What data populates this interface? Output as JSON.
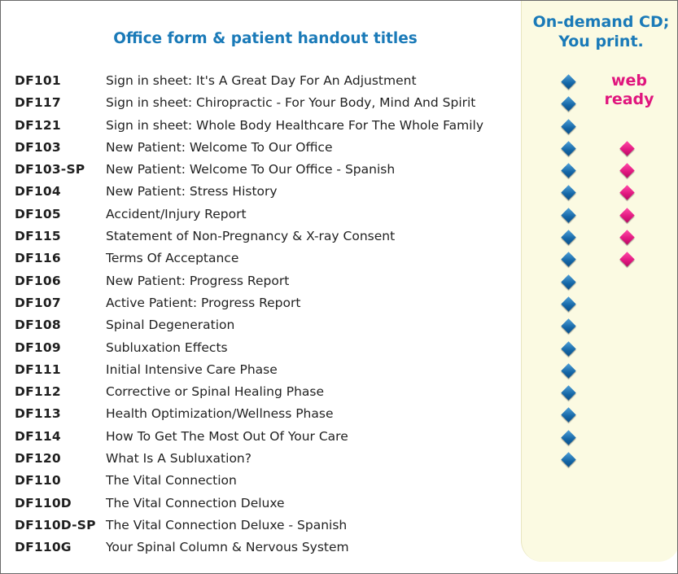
{
  "heading": "Office form & patient handout titles",
  "cd_column": {
    "line1": "On-demand CD;",
    "line2": "You print."
  },
  "web_column": {
    "line1": "web",
    "line2": "ready"
  },
  "colors": {
    "heading": "#1a7ab8",
    "cd_marker": "#1466a6",
    "web_marker": "#e0167e",
    "panel": "#fbfae2"
  },
  "icons": {
    "cd_marker": "blue-diamond-icon",
    "web_marker": "pink-diamond-icon"
  },
  "rows": [
    {
      "code": "DF101",
      "title": "Sign in sheet: It's A Great Day For An Adjustment",
      "cd": true,
      "web": false
    },
    {
      "code": "DF117",
      "title": "Sign in sheet: Chiropractic - For Your Body, Mind And Spirit",
      "cd": true,
      "web": false
    },
    {
      "code": "DF121",
      "title": "Sign in sheet: Whole Body Healthcare For The Whole Family",
      "cd": true,
      "web": false
    },
    {
      "code": "DF103",
      "title": "New Patient: Welcome To Our Office",
      "cd": true,
      "web": true
    },
    {
      "code": "DF103-SP",
      "title": "New Patient: Welcome To Our Office - Spanish",
      "cd": true,
      "web": true
    },
    {
      "code": "DF104",
      "title": "New Patient: Stress History",
      "cd": true,
      "web": true
    },
    {
      "code": "DF105",
      "title": "Accident/Injury Report",
      "cd": true,
      "web": true
    },
    {
      "code": "DF115",
      "title": "Statement of Non-Pregnancy & X-ray Consent",
      "cd": true,
      "web": true
    },
    {
      "code": "DF116",
      "title": "Terms Of Acceptance",
      "cd": true,
      "web": true
    },
    {
      "code": "DF106",
      "title": "New Patient: Progress Report",
      "cd": true,
      "web": false
    },
    {
      "code": "DF107",
      "title": "Active Patient: Progress Report",
      "cd": true,
      "web": false
    },
    {
      "code": "DF108",
      "title": "Spinal Degeneration",
      "cd": true,
      "web": false
    },
    {
      "code": "DF109",
      "title": "Subluxation Effects",
      "cd": true,
      "web": false
    },
    {
      "code": "DF111",
      "title": "Initial Intensive Care Phase",
      "cd": true,
      "web": false
    },
    {
      "code": "DF112",
      "title": "Corrective or Spinal Healing Phase",
      "cd": true,
      "web": false
    },
    {
      "code": "DF113",
      "title": "Health Optimization/Wellness Phase",
      "cd": true,
      "web": false
    },
    {
      "code": "DF114",
      "title": "How To Get The Most Out Of Your Care",
      "cd": true,
      "web": false
    },
    {
      "code": "DF120",
      "title": "What Is A Subluxation?",
      "cd": true,
      "web": false
    },
    {
      "code": "DF110",
      "title": "The Vital Connection",
      "cd": false,
      "web": false
    },
    {
      "code": "DF110D",
      "title": "The Vital Connection Deluxe",
      "cd": false,
      "web": false
    },
    {
      "code": "DF110D-SP",
      "title": "The Vital Connection Deluxe - Spanish",
      "cd": false,
      "web": false
    },
    {
      "code": "DF110G",
      "title": "Your Spinal Column & Nervous System",
      "cd": false,
      "web": false
    }
  ]
}
